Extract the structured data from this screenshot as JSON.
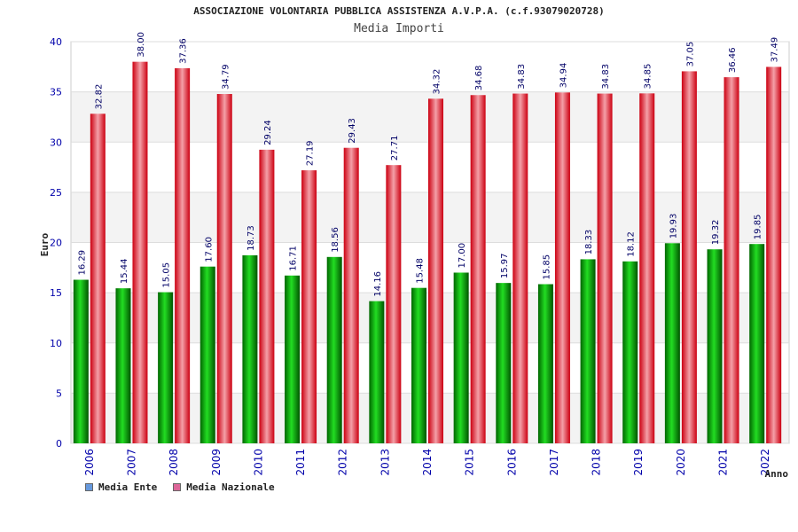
{
  "title": "ASSOCIAZIONE VOLONTARIA PUBBLICA ASSISTENZA A.V.P.A. (c.f.93079020728)",
  "subtitle": "Media Importi",
  "chart_data": {
    "type": "bar",
    "title": "Media Importi",
    "xlabel": "Anno",
    "ylabel": "Euro",
    "ylim": [
      0,
      40
    ],
    "yticks": [
      0,
      5,
      10,
      15,
      20,
      25,
      30,
      35,
      40
    ],
    "categories": [
      "2006",
      "2007",
      "2008",
      "2009",
      "2010",
      "2011",
      "2012",
      "2013",
      "2014",
      "2015",
      "2016",
      "2017",
      "2018",
      "2019",
      "2020",
      "2021",
      "2022"
    ],
    "series": [
      {
        "name": "Media Ente",
        "color": "#00aa00",
        "legend_color": "#6699dd",
        "values": [
          16.29,
          15.44,
          15.05,
          17.6,
          18.73,
          16.71,
          18.56,
          14.16,
          15.48,
          17.0,
          15.97,
          15.85,
          18.33,
          18.12,
          19.93,
          19.32,
          19.85
        ],
        "labels": [
          "16.29",
          "15.44",
          "15.05",
          "17.60",
          "18.73",
          "16.71",
          "18.56",
          "14.16",
          "15.48",
          "17.00",
          "15.97",
          "15.85",
          "18.33",
          "18.12",
          "19.93",
          "19.32",
          "19.85"
        ]
      },
      {
        "name": "Media Nazionale",
        "color": "#ee1133",
        "legend_color": "#dd6699",
        "values": [
          32.82,
          38.0,
          37.36,
          34.79,
          29.24,
          27.19,
          29.43,
          27.71,
          34.32,
          34.68,
          34.83,
          34.94,
          34.83,
          34.85,
          37.05,
          36.46,
          37.49
        ],
        "labels": [
          "32.82",
          "38.00",
          "37.36",
          "34.79",
          "29.24",
          "27.19",
          "29.43",
          "27.71",
          "34.32",
          "34.68",
          "34.83",
          "34.94",
          "34.83",
          "34.85",
          "37.05",
          "36.46",
          "37.49"
        ]
      }
    ],
    "legend_position": "bottom-left"
  }
}
